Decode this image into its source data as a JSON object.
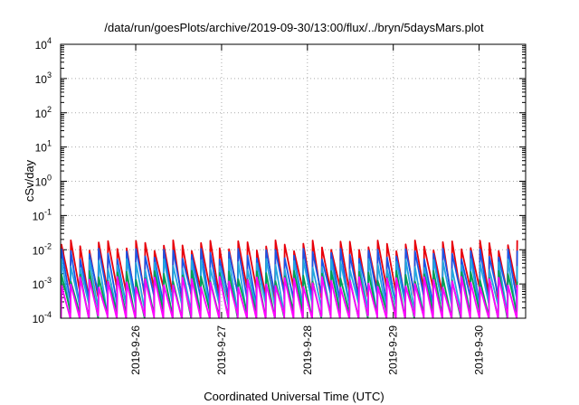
{
  "chart_data": {
    "type": "line",
    "title": "/data/run/goesPlots/archive/2019-09-30/13:00/flux/../bryn/5daysMars.plot",
    "xlabel": "Coordinated Universal Time (UTC)",
    "ylabel": "cSv/day",
    "x_range": [
      "2019-09-25 03:00",
      "2019-09-30 13:00"
    ],
    "x_ticks": [
      "2019-9-26",
      "2019-9-27",
      "2019-9-28",
      "2019-9-29",
      "2019-9-30"
    ],
    "y_scale": "log",
    "ylim": [
      0.0001,
      10000
    ],
    "y_ticks": [
      {
        "base": "10",
        "exp": "-4"
      },
      {
        "base": "10",
        "exp": "-3"
      },
      {
        "base": "10",
        "exp": "-2"
      },
      {
        "base": "10",
        "exp": "-1"
      },
      {
        "base": "10",
        "exp": "0"
      },
      {
        "base": "10",
        "exp": "1"
      },
      {
        "base": "10",
        "exp": "2"
      },
      {
        "base": "10",
        "exp": "3"
      },
      {
        "base": "10",
        "exp": "4"
      }
    ],
    "grid": true,
    "legend": "none",
    "sawtooth_period_hours": 2.6,
    "series": [
      {
        "color": "#e8000b",
        "peak": 0.014,
        "trough": 0.0006
      },
      {
        "color": "#1a55e6",
        "peak": 0.008,
        "trough": 0.0004
      },
      {
        "color": "#22a7e0",
        "peak": 0.004,
        "trough": 0.0002
      },
      {
        "color": "#00a050",
        "peak": 0.0018,
        "trough": 0.00012
      },
      {
        "color": "#ff00ff",
        "peak": 0.0012,
        "trough": 9e-05
      }
    ]
  }
}
